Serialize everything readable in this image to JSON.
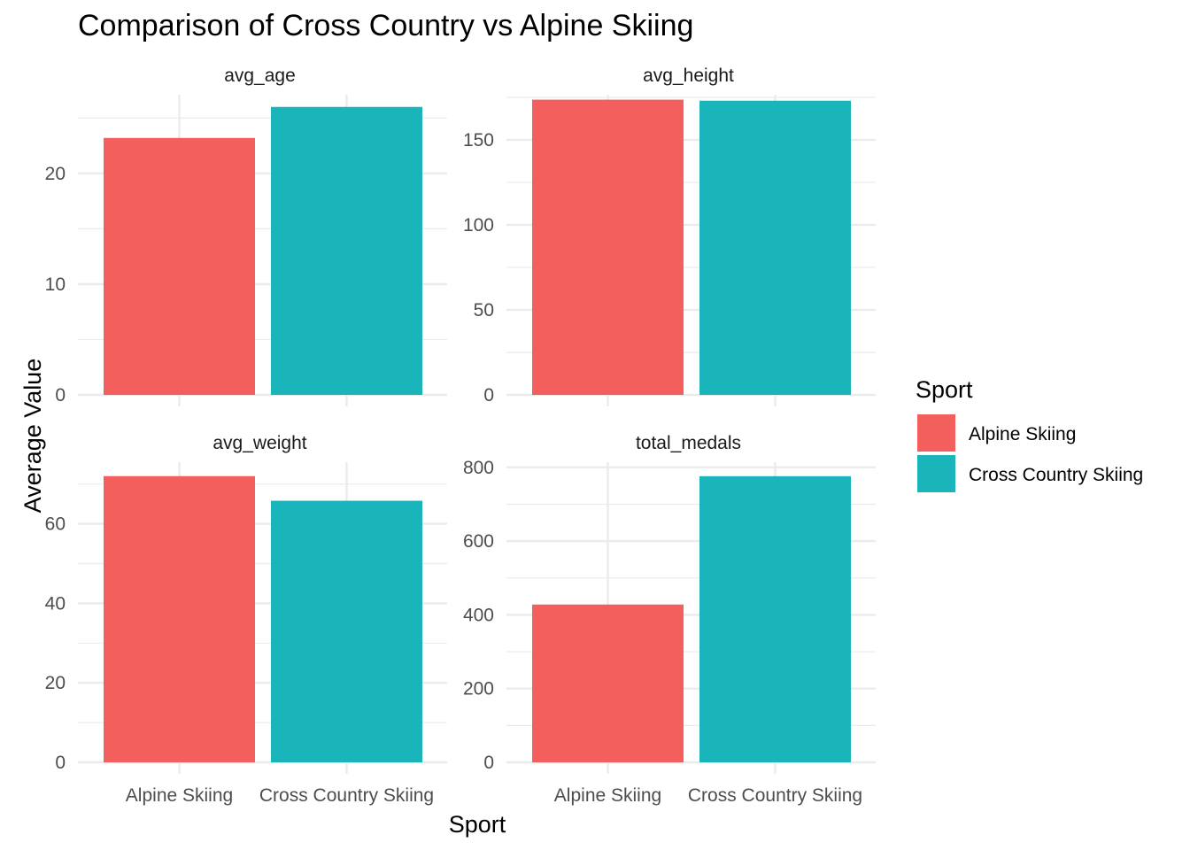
{
  "chart_data": {
    "type": "bar",
    "title": "Comparison of Cross Country vs Alpine Skiing",
    "xlabel": "Sport",
    "ylabel": "Average Value",
    "categories": [
      "Alpine Skiing",
      "Cross Country Skiing"
    ],
    "legend": {
      "title": "Sport",
      "position": "right",
      "entries": [
        {
          "label": "Alpine Skiing",
          "color": "#F25F5C"
        },
        {
          "label": "Cross Country Skiing",
          "color": "#1AB5BA"
        }
      ]
    },
    "grid": true,
    "panels": [
      {
        "name": "avg_age",
        "values": [
          23.2,
          26.0
        ],
        "ylim": [
          0,
          27.1
        ],
        "yticks": [
          0,
          10,
          20
        ]
      },
      {
        "name": "avg_height",
        "values": [
          173.6,
          173.0
        ],
        "ylim": [
          0,
          176.5
        ],
        "yticks": [
          0,
          50,
          100,
          150
        ]
      },
      {
        "name": "avg_weight",
        "values": [
          72.0,
          65.8
        ],
        "ylim": [
          0,
          75.5
        ],
        "yticks": [
          0,
          20,
          40,
          60
        ]
      },
      {
        "name": "total_medals",
        "values": [
          428,
          776
        ],
        "ylim": [
          0,
          814
        ],
        "yticks": [
          0,
          200,
          400,
          600,
          800
        ]
      }
    ]
  }
}
